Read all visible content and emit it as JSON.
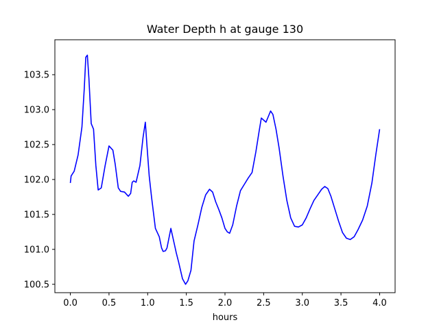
{
  "chart_data": {
    "type": "line",
    "title": "Water Depth h at gauge 130",
    "xlabel": "hours",
    "ylabel": "",
    "xlim": [
      -0.2,
      4.2
    ],
    "ylim": [
      100.38,
      104.0
    ],
    "xticks": [
      0.0,
      0.5,
      1.0,
      1.5,
      2.0,
      2.5,
      3.0,
      3.5,
      4.0
    ],
    "xtick_labels": [
      "0.0",
      "0.5",
      "1.0",
      "1.5",
      "2.0",
      "2.5",
      "3.0",
      "3.5",
      "4.0"
    ],
    "yticks": [
      100.5,
      101.0,
      101.5,
      102.0,
      102.5,
      103.0,
      103.5
    ],
    "ytick_labels": [
      "100.5",
      "101.0",
      "101.5",
      "102.0",
      "102.5",
      "103.0",
      "103.5"
    ],
    "grid": false,
    "legend": "none",
    "series": [
      {
        "color": "#0000ff",
        "x": [
          0.0,
          0.01,
          0.05,
          0.1,
          0.15,
          0.18,
          0.2,
          0.22,
          0.24,
          0.27,
          0.3,
          0.33,
          0.36,
          0.4,
          0.45,
          0.5,
          0.55,
          0.58,
          0.62,
          0.65,
          0.7,
          0.75,
          0.78,
          0.8,
          0.82,
          0.85,
          0.9,
          0.94,
          0.97,
          0.99,
          1.02,
          1.05,
          1.1,
          1.15,
          1.18,
          1.2,
          1.23,
          1.25,
          1.3,
          1.33,
          1.37,
          1.4,
          1.45,
          1.49,
          1.52,
          1.56,
          1.6,
          1.65,
          1.7,
          1.75,
          1.8,
          1.84,
          1.88,
          1.92,
          1.96,
          2.0,
          2.03,
          2.06,
          2.1,
          2.15,
          2.2,
          2.25,
          2.3,
          2.35,
          2.4,
          2.44,
          2.47,
          2.5,
          2.53,
          2.56,
          2.59,
          2.62,
          2.66,
          2.7,
          2.75,
          2.8,
          2.85,
          2.9,
          2.95,
          3.0,
          3.05,
          3.1,
          3.15,
          3.2,
          3.25,
          3.29,
          3.33,
          3.37,
          3.42,
          3.47,
          3.52,
          3.57,
          3.62,
          3.67,
          3.72,
          3.78,
          3.84,
          3.9,
          3.95,
          4.0
        ],
        "y": [
          101.95,
          102.05,
          102.12,
          102.35,
          102.75,
          103.3,
          103.75,
          103.78,
          103.45,
          102.8,
          102.72,
          102.2,
          101.85,
          101.88,
          102.2,
          102.48,
          102.42,
          102.22,
          101.88,
          101.83,
          101.82,
          101.76,
          101.8,
          101.96,
          101.98,
          101.96,
          102.2,
          102.6,
          102.82,
          102.5,
          102.05,
          101.75,
          101.3,
          101.18,
          101.02,
          100.97,
          100.98,
          101.02,
          101.3,
          101.15,
          100.95,
          100.82,
          100.58,
          100.5,
          100.55,
          100.7,
          101.12,
          101.35,
          101.6,
          101.78,
          101.86,
          101.82,
          101.68,
          101.57,
          101.45,
          101.3,
          101.25,
          101.23,
          101.35,
          101.62,
          101.84,
          101.93,
          102.02,
          102.1,
          102.4,
          102.68,
          102.88,
          102.85,
          102.82,
          102.9,
          102.98,
          102.93,
          102.72,
          102.45,
          102.05,
          101.7,
          101.45,
          101.33,
          101.32,
          101.35,
          101.45,
          101.58,
          101.7,
          101.78,
          101.86,
          101.9,
          101.87,
          101.76,
          101.58,
          101.4,
          101.24,
          101.16,
          101.14,
          101.18,
          101.28,
          101.42,
          101.62,
          101.95,
          102.35,
          102.72
        ]
      }
    ]
  }
}
